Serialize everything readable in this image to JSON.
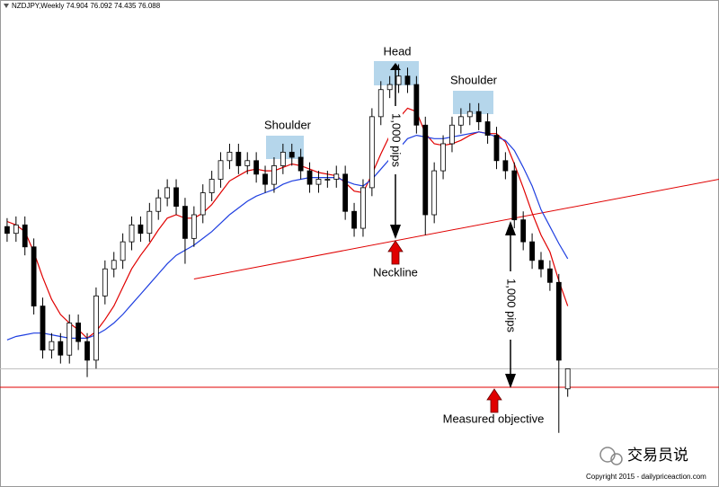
{
  "chart_data": {
    "type": "candlestick",
    "symbol": "NZDJPY,Weekly",
    "xlim": [
      -0.8,
      80
    ],
    "ylim": [
      69.1,
      97.9
    ],
    "open": [
      84.5,
      84.1,
      84.6,
      83.3,
      79.8,
      77.2,
      77.7,
      76.9,
      78.8,
      77.7,
      76.6,
      80.4,
      82.0,
      82.5,
      83.6,
      84.6,
      84.1,
      85.4,
      86.2,
      86.8,
      85.7,
      83.8,
      85.2,
      86.5,
      87.3,
      88.4,
      88.9,
      88.1,
      88.4,
      87.6,
      87.0,
      88.1,
      88.9,
      88.6,
      87.8,
      87.0,
      87.3,
      87.3,
      87.6,
      85.4,
      84.4,
      86.8,
      91.0,
      92.6,
      92.9,
      93.4,
      92.9,
      90.5,
      85.2,
      87.8,
      89.4,
      90.5,
      91.0,
      91.3,
      90.7,
      89.9,
      88.4,
      87.8,
      84.9,
      83.6,
      82.5,
      82.0,
      81.2,
      74.904
    ],
    "high": [
      85.0,
      85.1,
      85.1,
      83.8,
      80.3,
      78.2,
      78.2,
      79.3,
      79.3,
      78.2,
      80.9,
      82.5,
      83.0,
      84.1,
      85.1,
      85.1,
      85.9,
      86.7,
      87.3,
      87.3,
      86.2,
      85.7,
      87.0,
      87.8,
      88.9,
      89.4,
      89.4,
      88.9,
      88.9,
      88.1,
      88.6,
      89.4,
      89.4,
      89.1,
      88.3,
      87.8,
      87.8,
      88.1,
      88.1,
      85.9,
      87.3,
      91.5,
      93.1,
      93.4,
      94.1,
      93.9,
      93.4,
      91.0,
      88.3,
      89.9,
      91.0,
      91.5,
      91.8,
      91.8,
      91.2,
      90.4,
      88.9,
      88.3,
      85.4,
      84.1,
      83.0,
      82.5,
      81.7,
      76.092
    ],
    "low": [
      83.6,
      83.6,
      82.8,
      79.3,
      76.7,
      76.7,
      76.4,
      76.4,
      77.2,
      75.6,
      76.1,
      79.9,
      81.5,
      82.0,
      83.1,
      83.6,
      83.6,
      84.9,
      85.7,
      85.2,
      82.3,
      83.3,
      84.7,
      86.0,
      86.8,
      87.9,
      87.6,
      87.6,
      87.1,
      86.5,
      86.5,
      87.6,
      88.1,
      87.3,
      86.5,
      86.5,
      86.8,
      86.8,
      84.9,
      83.9,
      83.9,
      86.3,
      90.5,
      92.1,
      92.4,
      92.4,
      90.0,
      84.0,
      84.7,
      87.3,
      88.9,
      90.0,
      90.5,
      90.2,
      89.4,
      87.9,
      87.3,
      84.4,
      83.1,
      82.0,
      81.5,
      80.7,
      72.3,
      74.435
    ],
    "close": [
      84.1,
      84.6,
      83.3,
      79.8,
      77.2,
      77.7,
      76.9,
      78.8,
      77.7,
      76.6,
      80.4,
      82.0,
      82.5,
      83.6,
      84.6,
      84.1,
      85.4,
      86.2,
      86.8,
      85.7,
      83.8,
      85.2,
      86.5,
      87.3,
      88.4,
      88.9,
      88.1,
      88.4,
      87.6,
      87.0,
      88.1,
      88.9,
      88.6,
      87.8,
      87.0,
      87.3,
      87.3,
      87.6,
      85.4,
      84.4,
      86.8,
      91.0,
      92.6,
      92.9,
      93.4,
      92.9,
      90.5,
      85.2,
      87.8,
      89.4,
      90.5,
      91.0,
      91.3,
      90.7,
      89.9,
      88.4,
      87.8,
      84.9,
      83.6,
      82.5,
      82.0,
      81.2,
      76.6,
      76.088
    ],
    "lines": [
      {
        "color": "#e00000",
        "values": [
          84.8,
          84.6,
          84.2,
          83.0,
          81.5,
          80.2,
          79.3,
          78.8,
          78.4,
          77.9,
          78.3,
          79.0,
          79.8,
          80.9,
          82.0,
          82.8,
          83.5,
          84.3,
          85.0,
          85.2,
          85.0,
          85.0,
          85.3,
          85.8,
          86.5,
          87.2,
          87.5,
          87.8,
          87.9,
          87.8,
          87.8,
          88.0,
          88.2,
          88.1,
          87.9,
          87.7,
          87.6,
          87.5,
          87.1,
          86.6,
          86.5,
          87.6,
          88.8,
          89.9,
          90.9,
          91.5,
          91.3,
          90.0,
          89.4,
          89.3,
          89.4,
          89.6,
          89.9,
          90.1,
          90.0,
          90.0,
          89.5,
          88.2,
          86.8,
          85.3,
          84.0,
          83.0,
          81.3,
          79.8
        ]
      },
      {
        "color": "#1f3fe0",
        "values": [
          77.8,
          78.0,
          78.1,
          78.2,
          78.2,
          78.1,
          78.0,
          77.9,
          77.9,
          77.9,
          78.1,
          78.4,
          78.8,
          79.3,
          79.9,
          80.5,
          81.1,
          81.7,
          82.3,
          82.8,
          83.1,
          83.4,
          83.8,
          84.2,
          84.7,
          85.2,
          85.6,
          86.0,
          86.3,
          86.5,
          86.7,
          87.0,
          87.2,
          87.3,
          87.4,
          87.4,
          87.4,
          87.4,
          87.2,
          87.0,
          86.9,
          87.3,
          87.9,
          88.5,
          89.1,
          89.7,
          89.9,
          89.8,
          89.7,
          89.7,
          89.8,
          89.9,
          90.0,
          90.1,
          90.0,
          89.8,
          89.6,
          89.0,
          88.0,
          86.9,
          85.5,
          84.5,
          83.5,
          82.6
        ]
      }
    ],
    "neckline": {
      "x": [
        21,
        80
      ],
      "values": [
        81.4,
        87.3
      ],
      "color": "#e00000"
    },
    "objective": {
      "value": 75.0,
      "color": "#e00000"
    },
    "annotations": [
      "Head",
      "Shoulder",
      "Shoulder",
      "Neckline",
      "1,000 pips",
      "1,000 pips",
      "Measured objective"
    ],
    "watermark": "交易员说",
    "copyright": "Copyright 2015 - dailypriceaction.com"
  }
}
